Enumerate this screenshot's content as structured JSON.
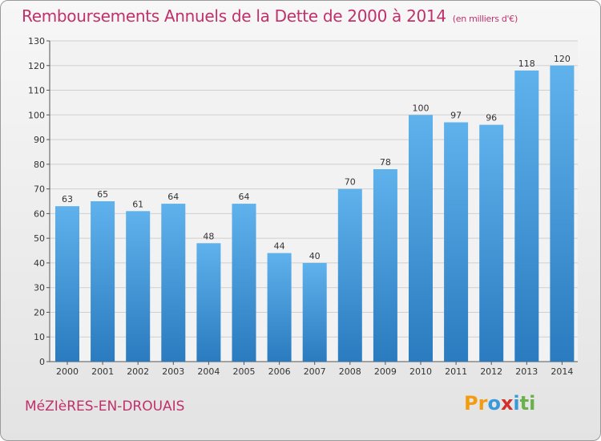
{
  "chart_data": {
    "type": "bar",
    "title": "Remboursements Annuels de la Dette de 2000 à 2014",
    "unit_note": "(en milliers d'€)",
    "categories": [
      "2000",
      "2001",
      "2002",
      "2003",
      "2004",
      "2005",
      "2006",
      "2007",
      "2008",
      "2009",
      "2010",
      "2011",
      "2012",
      "2013",
      "2014"
    ],
    "values": [
      63,
      65,
      61,
      64,
      48,
      64,
      44,
      40,
      70,
      78,
      100,
      97,
      96,
      118,
      120
    ],
    "ylim": [
      0,
      130
    ],
    "yticks": [
      0,
      10,
      20,
      30,
      40,
      50,
      60,
      70,
      80,
      90,
      100,
      110,
      120,
      130
    ],
    "grid": true,
    "bar_color": "#3e96dc",
    "grid_color": "#cfcfcf"
  },
  "footer": {
    "city": "MéZIèRES-EN-DROUAIS",
    "logo": [
      "P",
      "r",
      "o",
      "x",
      "i",
      "t",
      "i"
    ]
  },
  "colors": {
    "title": "#c0306b",
    "logo_letters": [
      "#f39c12",
      "#f39c12",
      "#3a9ad9",
      "#d0312d",
      "#3a9ad9",
      "#6ab04c",
      "#6ab04c"
    ]
  }
}
